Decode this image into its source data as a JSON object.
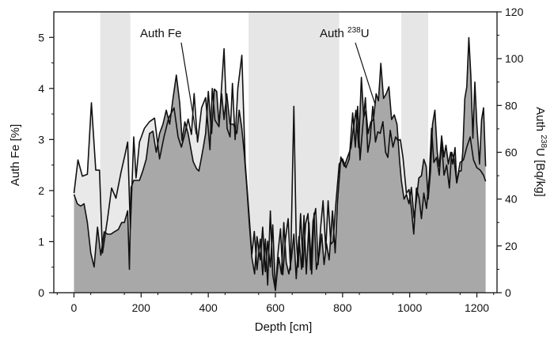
{
  "chart_data": {
    "type": "area",
    "xlabel": "Depth [cm]",
    "ylabel_left": "Auth Fe [%]",
    "ylabel_right": "Auth 238U [Bq/kg]",
    "ylabel_right_parts": {
      "prefix": "Auth ",
      "sup": "238",
      "suffix": "U [Bq/kg]"
    },
    "xlim": [
      -60,
      1260
    ],
    "ylim_left": [
      0,
      5.5
    ],
    "ylim_right": [
      0,
      120
    ],
    "x_ticks": [
      0,
      200,
      400,
      600,
      800,
      1000,
      1200
    ],
    "y_left_ticks": [
      0,
      1,
      2,
      3,
      4,
      5
    ],
    "y_right_ticks": [
      0,
      20,
      40,
      60,
      80,
      100,
      120
    ],
    "shaded_intervals": [
      [
        78,
        168
      ],
      [
        520,
        790
      ],
      [
        975,
        1055
      ]
    ],
    "annotations": [
      {
        "text": "Auth Fe",
        "series": "Auth Fe"
      },
      {
        "text_prefix": "Auth ",
        "sup": "238",
        "text_suffix": "U",
        "series": "Auth 238U"
      }
    ],
    "series": [
      {
        "name": "Auth Fe",
        "axis": "left",
        "style": "line, light gray fill",
        "points": [
          [
            0,
            1.95
          ],
          [
            12,
            2.6
          ],
          [
            25,
            2.28
          ],
          [
            40,
            2.32
          ],
          [
            52,
            3.72
          ],
          [
            65,
            2.4
          ],
          [
            76,
            2.4
          ],
          [
            85,
            0.78
          ],
          [
            100,
            1.45
          ],
          [
            112,
            2.05
          ],
          [
            125,
            1.85
          ],
          [
            140,
            2.35
          ],
          [
            152,
            2.7
          ],
          [
            160,
            2.95
          ],
          [
            168,
            1.25
          ],
          [
            178,
            3.05
          ],
          [
            185,
            2.25
          ],
          [
            195,
            2.95
          ],
          [
            210,
            3.22
          ],
          [
            225,
            3.35
          ],
          [
            240,
            3.42
          ],
          [
            255,
            2.62
          ],
          [
            268,
            3.05
          ],
          [
            282,
            3.42
          ],
          [
            298,
            3.62
          ],
          [
            310,
            3.05
          ],
          [
            320,
            2.85
          ],
          [
            330,
            3.1
          ],
          [
            340,
            3.4
          ],
          [
            350,
            3.1
          ],
          [
            358,
            3.9
          ],
          [
            368,
            2.95
          ],
          [
            380,
            3.62
          ],
          [
            392,
            3.82
          ],
          [
            405,
            2.8
          ],
          [
            412,
            4.0
          ],
          [
            420,
            3.38
          ],
          [
            432,
            3.25
          ],
          [
            447,
            4.78
          ],
          [
            456,
            3.22
          ],
          [
            465,
            3.05
          ],
          [
            472,
            4.1
          ],
          [
            480,
            3.0
          ],
          [
            488,
            4.0
          ],
          [
            500,
            4.65
          ],
          [
            510,
            2.55
          ],
          [
            520,
            1.65
          ],
          [
            530,
            0.75
          ],
          [
            537,
            1.2
          ],
          [
            545,
            0.45
          ],
          [
            555,
            1.05
          ],
          [
            562,
            0.35
          ],
          [
            570,
            1.05
          ],
          [
            577,
            0.15
          ],
          [
            585,
            1.6
          ],
          [
            592,
            0.35
          ],
          [
            600,
            0.05
          ],
          [
            608,
            0.8
          ],
          [
            615,
            1.25
          ],
          [
            622,
            0.35
          ],
          [
            630,
            1.05
          ],
          [
            638,
            1.45
          ],
          [
            645,
            0.45
          ],
          [
            655,
            3.65
          ],
          [
            662,
            1.05
          ],
          [
            668,
            0.5
          ],
          [
            675,
            1.55
          ],
          [
            682,
            0.5
          ],
          [
            690,
            1.35
          ],
          [
            697,
            1.55
          ],
          [
            705,
            0.45
          ],
          [
            712,
            1.4
          ],
          [
            720,
            1.65
          ],
          [
            727,
            0.55
          ],
          [
            735,
            1.3
          ],
          [
            742,
            1.8
          ],
          [
            750,
            0.85
          ],
          [
            757,
            1.8
          ],
          [
            765,
            0.95
          ],
          [
            772,
            1.0
          ],
          [
            780,
            1.75
          ],
          [
            790,
            2.52
          ],
          [
            800,
            2.62
          ],
          [
            810,
            2.45
          ],
          [
            820,
            2.62
          ],
          [
            830,
            3.52
          ],
          [
            838,
            2.85
          ],
          [
            845,
            3.65
          ],
          [
            852,
            2.6
          ],
          [
            860,
            3.25
          ],
          [
            868,
            3.82
          ],
          [
            875,
            2.75
          ],
          [
            882,
            3.0
          ],
          [
            890,
            3.65
          ],
          [
            898,
            2.95
          ],
          [
            905,
            3.15
          ],
          [
            912,
            3.12
          ],
          [
            920,
            3.35
          ],
          [
            928,
            2.75
          ],
          [
            935,
            2.65
          ],
          [
            942,
            3.18
          ],
          [
            950,
            2.85
          ],
          [
            958,
            3.05
          ],
          [
            965,
            2.98
          ],
          [
            972,
            3.0
          ],
          [
            980,
            2.65
          ],
          [
            990,
            1.95
          ],
          [
            998,
            2.02
          ],
          [
            1005,
            1.65
          ],
          [
            1012,
            1.15
          ],
          [
            1020,
            2.05
          ],
          [
            1028,
            1.85
          ],
          [
            1035,
            1.45
          ],
          [
            1042,
            1.95
          ],
          [
            1050,
            1.65
          ],
          [
            1058,
            2.25
          ],
          [
            1065,
            3.22
          ],
          [
            1072,
            2.55
          ],
          [
            1080,
            2.65
          ],
          [
            1088,
            2.3
          ],
          [
            1095,
            2.95
          ],
          [
            1102,
            2.3
          ],
          [
            1110,
            2.5
          ],
          [
            1118,
            2.05
          ],
          [
            1125,
            2.75
          ],
          [
            1132,
            2.62
          ],
          [
            1140,
            2.15
          ],
          [
            1150,
            2.55
          ],
          [
            1160,
            2.6
          ],
          [
            1170,
            2.85
          ],
          [
            1180,
            3.05
          ],
          [
            1190,
            2.6
          ],
          [
            1200,
            2.45
          ],
          [
            1210,
            2.4
          ],
          [
            1220,
            2.3
          ],
          [
            1226,
            2.18
          ]
        ]
      },
      {
        "name": "Auth 238U",
        "axis": "right",
        "style": "line, dark gray fill",
        "points": [
          [
            0,
            42
          ],
          [
            10,
            38
          ],
          [
            20,
            37
          ],
          [
            30,
            38
          ],
          [
            40,
            30
          ],
          [
            50,
            17
          ],
          [
            60,
            11
          ],
          [
            70,
            28
          ],
          [
            80,
            16
          ],
          [
            90,
            26
          ],
          [
            100,
            25
          ],
          [
            110,
            25
          ],
          [
            120,
            26
          ],
          [
            132,
            27
          ],
          [
            142,
            30
          ],
          [
            150,
            30
          ],
          [
            160,
            35
          ],
          [
            165,
            10
          ],
          [
            170,
            45
          ],
          [
            178,
            48
          ],
          [
            185,
            48
          ],
          [
            195,
            48
          ],
          [
            205,
            52
          ],
          [
            215,
            57
          ],
          [
            225,
            68
          ],
          [
            235,
            69
          ],
          [
            245,
            60
          ],
          [
            255,
            68
          ],
          [
            265,
            72
          ],
          [
            275,
            78
          ],
          [
            285,
            72
          ],
          [
            295,
            83
          ],
          [
            305,
            93
          ],
          [
            315,
            81
          ],
          [
            322,
            65
          ],
          [
            330,
            73
          ],
          [
            340,
            68
          ],
          [
            345,
            64
          ],
          [
            355,
            56
          ],
          [
            365,
            53
          ],
          [
            372,
            52
          ],
          [
            380,
            58
          ],
          [
            385,
            62
          ],
          [
            392,
            68
          ],
          [
            400,
            86
          ],
          [
            410,
            68
          ],
          [
            418,
            87
          ],
          [
            425,
            86
          ],
          [
            432,
            72
          ],
          [
            440,
            85
          ],
          [
            447,
            74
          ],
          [
            455,
            85
          ],
          [
            465,
            72
          ],
          [
            475,
            72
          ],
          [
            485,
            68
          ],
          [
            492,
            78
          ],
          [
            500,
            70
          ],
          [
            507,
            60
          ],
          [
            515,
            45
          ],
          [
            522,
            30
          ],
          [
            530,
            15
          ],
          [
            538,
            8
          ],
          [
            545,
            24
          ],
          [
            555,
            14
          ],
          [
            562,
            28
          ],
          [
            570,
            9
          ],
          [
            577,
            22
          ],
          [
            585,
            11
          ],
          [
            592,
            29
          ],
          [
            600,
            1
          ],
          [
            610,
            15
          ],
          [
            618,
            8
          ],
          [
            625,
            30
          ],
          [
            632,
            13
          ],
          [
            640,
            8
          ],
          [
            648,
            15
          ],
          [
            655,
            25
          ],
          [
            662,
            6
          ],
          [
            670,
            24
          ],
          [
            678,
            10
          ],
          [
            685,
            33
          ],
          [
            692,
            8
          ],
          [
            700,
            30
          ],
          [
            708,
            8
          ],
          [
            715,
            34
          ],
          [
            722,
            10
          ],
          [
            730,
            16
          ],
          [
            738,
            25
          ],
          [
            745,
            12
          ],
          [
            752,
            21
          ],
          [
            760,
            14
          ],
          [
            770,
            35
          ],
          [
            778,
            17
          ],
          [
            785,
            39
          ],
          [
            795,
            58
          ],
          [
            805,
            54
          ],
          [
            815,
            58
          ],
          [
            825,
            62
          ],
          [
            832,
            70
          ],
          [
            840,
            78
          ],
          [
            848,
            62
          ],
          [
            856,
            92
          ],
          [
            863,
            75
          ],
          [
            870,
            78
          ],
          [
            876,
            68
          ],
          [
            884,
            73
          ],
          [
            892,
            74
          ],
          [
            900,
            85
          ],
          [
            907,
            82
          ],
          [
            914,
            98
          ],
          [
            922,
            83
          ],
          [
            930,
            85
          ],
          [
            938,
            88
          ],
          [
            946,
            74
          ],
          [
            954,
            76
          ],
          [
            962,
            72
          ],
          [
            970,
            56
          ],
          [
            975,
            48
          ],
          [
            983,
            40
          ],
          [
            990,
            42
          ],
          [
            998,
            38
          ],
          [
            1005,
            45
          ],
          [
            1013,
            32
          ],
          [
            1020,
            40
          ],
          [
            1027,
            49
          ],
          [
            1035,
            50
          ],
          [
            1042,
            57
          ],
          [
            1049,
            54
          ],
          [
            1055,
            40
          ],
          [
            1062,
            52
          ],
          [
            1068,
            72
          ],
          [
            1075,
            78
          ],
          [
            1082,
            60
          ],
          [
            1088,
            54
          ],
          [
            1095,
            67
          ],
          [
            1102,
            58
          ],
          [
            1108,
            63
          ],
          [
            1115,
            55
          ],
          [
            1122,
            60
          ],
          [
            1128,
            55
          ],
          [
            1135,
            62
          ],
          [
            1140,
            47
          ],
          [
            1147,
            52
          ],
          [
            1153,
            52
          ],
          [
            1158,
            60
          ],
          [
            1164,
            83
          ],
          [
            1170,
            88
          ],
          [
            1176,
            109
          ],
          [
            1182,
            93
          ],
          [
            1188,
            66
          ],
          [
            1194,
            90
          ],
          [
            1200,
            72
          ],
          [
            1208,
            55
          ],
          [
            1214,
            74
          ],
          [
            1220,
            79
          ],
          [
            1226,
            54
          ]
        ]
      }
    ]
  }
}
